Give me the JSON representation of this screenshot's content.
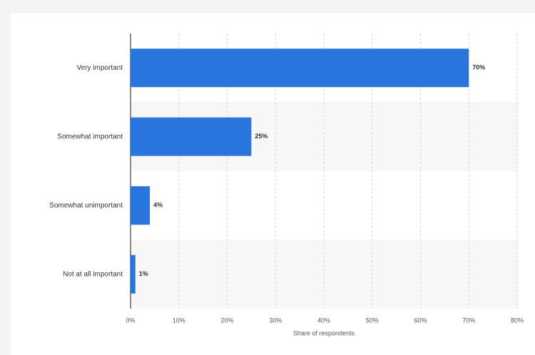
{
  "chart_data": {
    "type": "bar",
    "orientation": "horizontal",
    "x_label": "Share of respondents",
    "categories": [
      "Very important",
      "Somewhat important",
      "Somewhat unimportant",
      "Not at all important"
    ],
    "values": [
      70,
      25,
      4,
      1
    ],
    "value_labels": [
      "70%",
      "25%",
      "4%",
      "1%"
    ],
    "color": "#2876dd",
    "xlim": [
      0,
      80
    ],
    "xticks": [
      {
        "value": 0,
        "label": "0%"
      },
      {
        "value": 10,
        "label": "10%"
      },
      {
        "value": 20,
        "label": "20%"
      },
      {
        "value": 30,
        "label": "30%"
      },
      {
        "value": 40,
        "label": "40%"
      },
      {
        "value": 50,
        "label": "50%"
      },
      {
        "value": 60,
        "label": "60%"
      },
      {
        "value": 70,
        "label": "70%"
      },
      {
        "value": 80,
        "label": "80%"
      }
    ],
    "grid": true
  }
}
